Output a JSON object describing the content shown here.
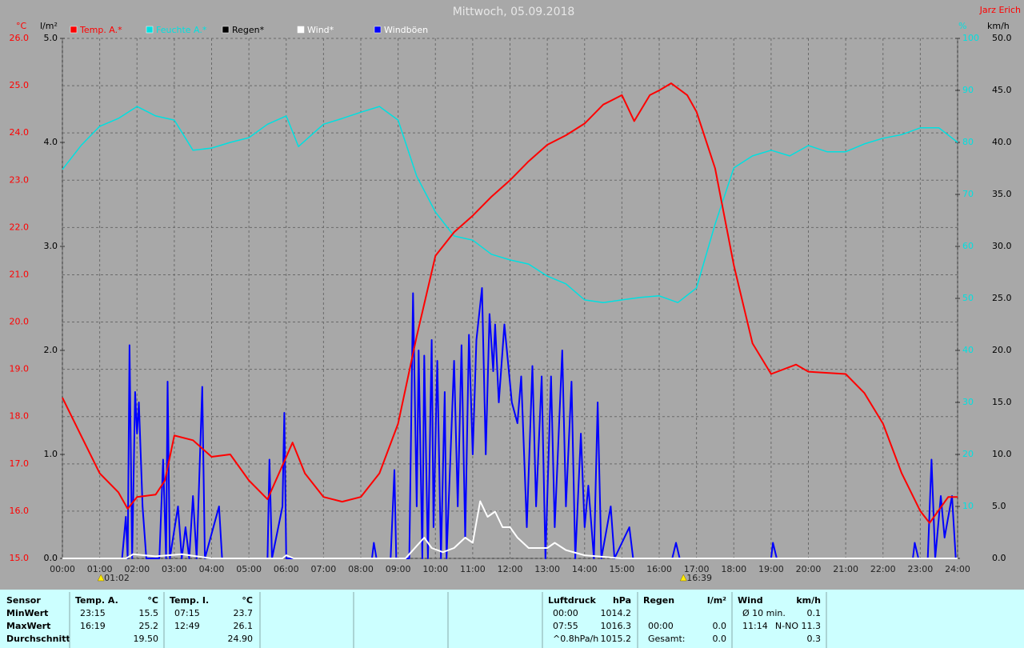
{
  "chart_data": {
    "type": "line",
    "title": "Mittwoch, 05.09.2018",
    "author": "Jarz Erich",
    "ylabel": "°C",
    "y4label": "l/m²",
    "y3label": "%",
    "y2label": "km/h",
    "xlim": [
      0,
      24
    ],
    "xticks": [
      {
        "value": 0,
        "label": "00:00"
      },
      {
        "value": 1,
        "label": "01:00"
      },
      {
        "value": 2,
        "label": "02:00"
      },
      {
        "value": 3,
        "label": "03:00"
      },
      {
        "value": 4,
        "label": "04:00"
      },
      {
        "value": 5,
        "label": "05:00"
      },
      {
        "value": 6,
        "label": "06:00"
      },
      {
        "value": 7,
        "label": "07:00"
      },
      {
        "value": 8,
        "label": "08:00"
      },
      {
        "value": 9,
        "label": "09:00"
      },
      {
        "value": 10,
        "label": "10:00"
      },
      {
        "value": 11,
        "label": "11:00"
      },
      {
        "value": 12,
        "label": "12:00"
      },
      {
        "value": 13,
        "label": "13:00"
      },
      {
        "value": 14,
        "label": "14:00"
      },
      {
        "value": 15,
        "label": "15:00"
      },
      {
        "value": 16,
        "label": "16:00"
      },
      {
        "value": 17,
        "label": "17:00"
      },
      {
        "value": 18,
        "label": "18:00"
      },
      {
        "value": 19,
        "label": "19:00"
      },
      {
        "value": 20,
        "label": "20:00"
      },
      {
        "value": 21,
        "label": "21:00"
      },
      {
        "value": 22,
        "label": "22:00"
      },
      {
        "value": 23,
        "label": "23:00"
      },
      {
        "value": 24,
        "label": "24:00"
      }
    ],
    "ylim": [
      15,
      26
    ],
    "yticks": [
      {
        "value": 15,
        "label": "15.0"
      },
      {
        "value": 16,
        "label": "16.0"
      },
      {
        "value": 17,
        "label": "17.0"
      },
      {
        "value": 18,
        "label": "18.0"
      },
      {
        "value": 19,
        "label": "19.0"
      },
      {
        "value": 20,
        "label": "20.0"
      },
      {
        "value": 21,
        "label": "21.0"
      },
      {
        "value": 22,
        "label": "22.0"
      },
      {
        "value": 23,
        "label": "23.0"
      },
      {
        "value": 24,
        "label": "24.0"
      },
      {
        "value": 25,
        "label": "25.0"
      },
      {
        "value": 26,
        "label": "26.0"
      }
    ],
    "y4lim": [
      0,
      5
    ],
    "y4ticks": [
      {
        "value": 0,
        "label": "0.0"
      },
      {
        "value": 1,
        "label": "1.0"
      },
      {
        "value": 2,
        "label": "2.0"
      },
      {
        "value": 3,
        "label": "3.0"
      },
      {
        "value": 4,
        "label": "4.0"
      },
      {
        "value": 5,
        "label": "5.0"
      }
    ],
    "y3lim": [
      0,
      100
    ],
    "y3ticks": [
      10,
      20,
      30,
      40,
      50,
      60,
      70,
      80,
      90,
      100
    ],
    "y2lim": [
      0,
      50
    ],
    "y2ticks": [
      {
        "value": 0,
        "label": "0.0"
      },
      {
        "value": 5,
        "label": "5.0"
      },
      {
        "value": 10,
        "label": "10.0"
      },
      {
        "value": 15,
        "label": "15.0"
      },
      {
        "value": 20,
        "label": "20.0"
      },
      {
        "value": 25,
        "label": "25.0"
      },
      {
        "value": 30,
        "label": "30.0"
      },
      {
        "value": 35,
        "label": "35.0"
      },
      {
        "value": 40,
        "label": "40.0"
      },
      {
        "value": 45,
        "label": "45.0"
      },
      {
        "value": 50,
        "label": "50.0"
      }
    ],
    "grid": true,
    "series": [
      {
        "name": "Temp. A.*",
        "color": "#ff0000",
        "axis": "y",
        "x": [
          0,
          0.5,
          1,
          1.5,
          1.75,
          2,
          2.5,
          2.75,
          3,
          3.5,
          4,
          4.5,
          5,
          5.5,
          6.17,
          6.5,
          7,
          7.5,
          8,
          8.5,
          9,
          9.5,
          10,
          10.5,
          11,
          11.5,
          12,
          12.5,
          13,
          13.5,
          14,
          14.5,
          15,
          15.33,
          15.75,
          16,
          16.32,
          16.75,
          17,
          17.5,
          18,
          18.5,
          19,
          19.67,
          20,
          21,
          21.5,
          22,
          22.5,
          23,
          23.25,
          23.75,
          24
        ],
        "values": [
          18.4,
          17.6,
          16.8,
          16.4,
          16.05,
          16.3,
          16.35,
          16.65,
          17.6,
          17.5,
          17.15,
          17.2,
          16.65,
          16.25,
          17.45,
          16.8,
          16.3,
          16.2,
          16.3,
          16.8,
          17.85,
          19.7,
          21.4,
          21.9,
          22.25,
          22.65,
          23.0,
          23.4,
          23.75,
          23.95,
          24.2,
          24.6,
          24.8,
          24.25,
          24.8,
          24.9,
          25.05,
          24.8,
          24.45,
          23.25,
          21.2,
          19.55,
          18.9,
          19.1,
          18.95,
          18.9,
          18.5,
          17.85,
          16.8,
          16.0,
          15.75,
          16.3,
          16.3
        ]
      },
      {
        "name": "Feuchte A.*",
        "color": "#00e0e0",
        "axis": "y3",
        "x": [
          0,
          0.5,
          1,
          1.5,
          2,
          2.5,
          3,
          3.5,
          4,
          4.5,
          5,
          5.5,
          6,
          6.33,
          7,
          7.5,
          8,
          8.5,
          9,
          9.5,
          10,
          10.5,
          11,
          11.5,
          12,
          12.5,
          13,
          13.5,
          14,
          14.5,
          15,
          15.5,
          16,
          16.5,
          17,
          17.5,
          18,
          18.5,
          19,
          19.5,
          20,
          20.5,
          21,
          21.5,
          22,
          22.5,
          23,
          23.5,
          24
        ],
        "values": [
          74.8,
          79.4,
          83.1,
          84.6,
          86.9,
          85.1,
          84.3,
          78.5,
          78.9,
          80,
          80.9,
          83.5,
          85.1,
          79.2,
          83.5,
          84.6,
          85.8,
          86.9,
          84.3,
          73.5,
          66.6,
          62,
          61.2,
          58.5,
          57.4,
          56.6,
          54.3,
          52.8,
          49.7,
          49.2,
          49.7,
          50.2,
          50.5,
          49.2,
          52,
          64.3,
          75.1,
          77.4,
          78.5,
          77.4,
          79.4,
          78.2,
          78.2,
          79.7,
          80.8,
          81.5,
          82.8,
          82.8,
          80
        ]
      },
      {
        "name": "Regen*",
        "color": "#000000",
        "axis": "y4"
      },
      {
        "name": "Wind*",
        "color": "#ffffff",
        "axis": "y2",
        "x": [
          0,
          1.7,
          1.9,
          2.2,
          2.5,
          3.2,
          3.6,
          4.0,
          5.9,
          6.0,
          6.2,
          9.2,
          9.5,
          9.7,
          9.9,
          10.2,
          10.5,
          10.8,
          11.0,
          11.2,
          11.4,
          11.6,
          11.8,
          12.0,
          12.2,
          12.5,
          13.0,
          13.2,
          13.5,
          14.0,
          15.0,
          24
        ],
        "values": [
          0,
          0,
          0.4,
          0.3,
          0.2,
          0.4,
          0.2,
          0,
          0,
          0.3,
          0,
          0,
          1.2,
          2,
          1,
          0.6,
          1,
          2,
          1.5,
          5.5,
          4,
          4.5,
          3,
          3,
          2,
          1,
          1,
          1.5,
          0.8,
          0.3,
          0,
          0
        ]
      },
      {
        "name": "Windböen",
        "color": "#0000ff",
        "axis": "y2",
        "x": [
          0,
          1.6,
          1.7,
          1.75,
          1.8,
          1.87,
          1.95,
          2.0,
          2.05,
          2.15,
          2.25,
          2.6,
          2.7,
          2.78,
          2.82,
          2.88,
          3.1,
          3.2,
          3.3,
          3.4,
          3.5,
          3.6,
          3.75,
          3.82,
          4.2,
          4.28,
          5.5,
          5.55,
          5.62,
          5.9,
          5.95,
          6.0,
          8.3,
          8.35,
          8.42,
          8.8,
          8.9,
          8.95,
          9.3,
          9.4,
          9.5,
          9.55,
          9.65,
          9.7,
          9.8,
          9.9,
          9.95,
          10.05,
          10.15,
          10.25,
          10.3,
          10.5,
          10.6,
          10.7,
          10.8,
          10.9,
          11.0,
          11.1,
          11.25,
          11.35,
          11.45,
          11.55,
          11.6,
          11.7,
          11.85,
          12.05,
          12.2,
          12.3,
          12.45,
          12.6,
          12.7,
          12.85,
          12.95,
          13.1,
          13.2,
          13.4,
          13.5,
          13.65,
          13.75,
          13.9,
          14.0,
          14.1,
          14.25,
          14.35,
          14.45,
          14.7,
          14.8,
          15.2,
          15.3,
          16.35,
          16.45,
          16.55,
          19.0,
          19.05,
          19.15,
          22.8,
          22.85,
          22.95,
          23.2,
          23.3,
          23.4,
          23.55,
          23.65,
          23.85,
          23.95,
          24
        ],
        "values": [
          0,
          0,
          4,
          0,
          20.5,
          0,
          16,
          12,
          15,
          5,
          0,
          0,
          9.5,
          0,
          17,
          0,
          5,
          0,
          3,
          0,
          6,
          0,
          16.5,
          0,
          5,
          0,
          0,
          9.5,
          0,
          5,
          14,
          0,
          0,
          1.5,
          0,
          0,
          8.5,
          0,
          0,
          25.5,
          5,
          20,
          0,
          19.5,
          0,
          21,
          3,
          19,
          0,
          16,
          0,
          19,
          5,
          20.5,
          2,
          21.5,
          10,
          21,
          26,
          10,
          23.5,
          18,
          22.5,
          15,
          22.5,
          15,
          13,
          17.5,
          3,
          18.5,
          5,
          17.5,
          0,
          17.5,
          3,
          20,
          5,
          17,
          0,
          12,
          3,
          7,
          0,
          15,
          0,
          5,
          0,
          3,
          0,
          0,
          1.5,
          0,
          0,
          1.5,
          0,
          0,
          1.5,
          0,
          0,
          9.5,
          0,
          6,
          2,
          6,
          0,
          0
        ]
      }
    ],
    "sun_events": [
      "01:02",
      "16:39"
    ]
  },
  "table": {
    "labels": [
      "Sensor",
      "MinWert",
      "MaxWert",
      "Durchschnitt"
    ],
    "groups": [
      {
        "head": [
          "Temp. A.",
          "°C"
        ],
        "rows": [
          [
            "23:15",
            "15.5"
          ],
          [
            "16:19",
            "25.2"
          ],
          [
            null,
            "19.50"
          ]
        ]
      },
      {
        "head": [
          "Temp. I.",
          "°C"
        ],
        "rows": [
          [
            "07:15",
            "23.7"
          ],
          [
            "12:49",
            "26.1"
          ],
          [
            null,
            "24.90"
          ]
        ]
      },
      {
        "head": [
          "Luftdruck",
          "hPa"
        ],
        "rows": [
          [
            "00:00",
            "1014.2"
          ],
          [
            "07:55",
            "1016.3"
          ],
          [
            "^0.8hPa/h",
            "1015.2"
          ]
        ]
      },
      {
        "head": [
          "Regen",
          "l/m²"
        ],
        "rows": [
          [
            null,
            null
          ],
          [
            "00:00",
            "0.0"
          ],
          [
            "Gesamt:",
            "0.0"
          ]
        ]
      },
      {
        "head": [
          "Wind",
          "km/h"
        ],
        "rows": [
          [
            "Ø 10 min.",
            "0.1"
          ],
          [
            "11:14",
            "N-NO 11.3"
          ],
          [
            null,
            "0.3"
          ]
        ]
      }
    ]
  }
}
